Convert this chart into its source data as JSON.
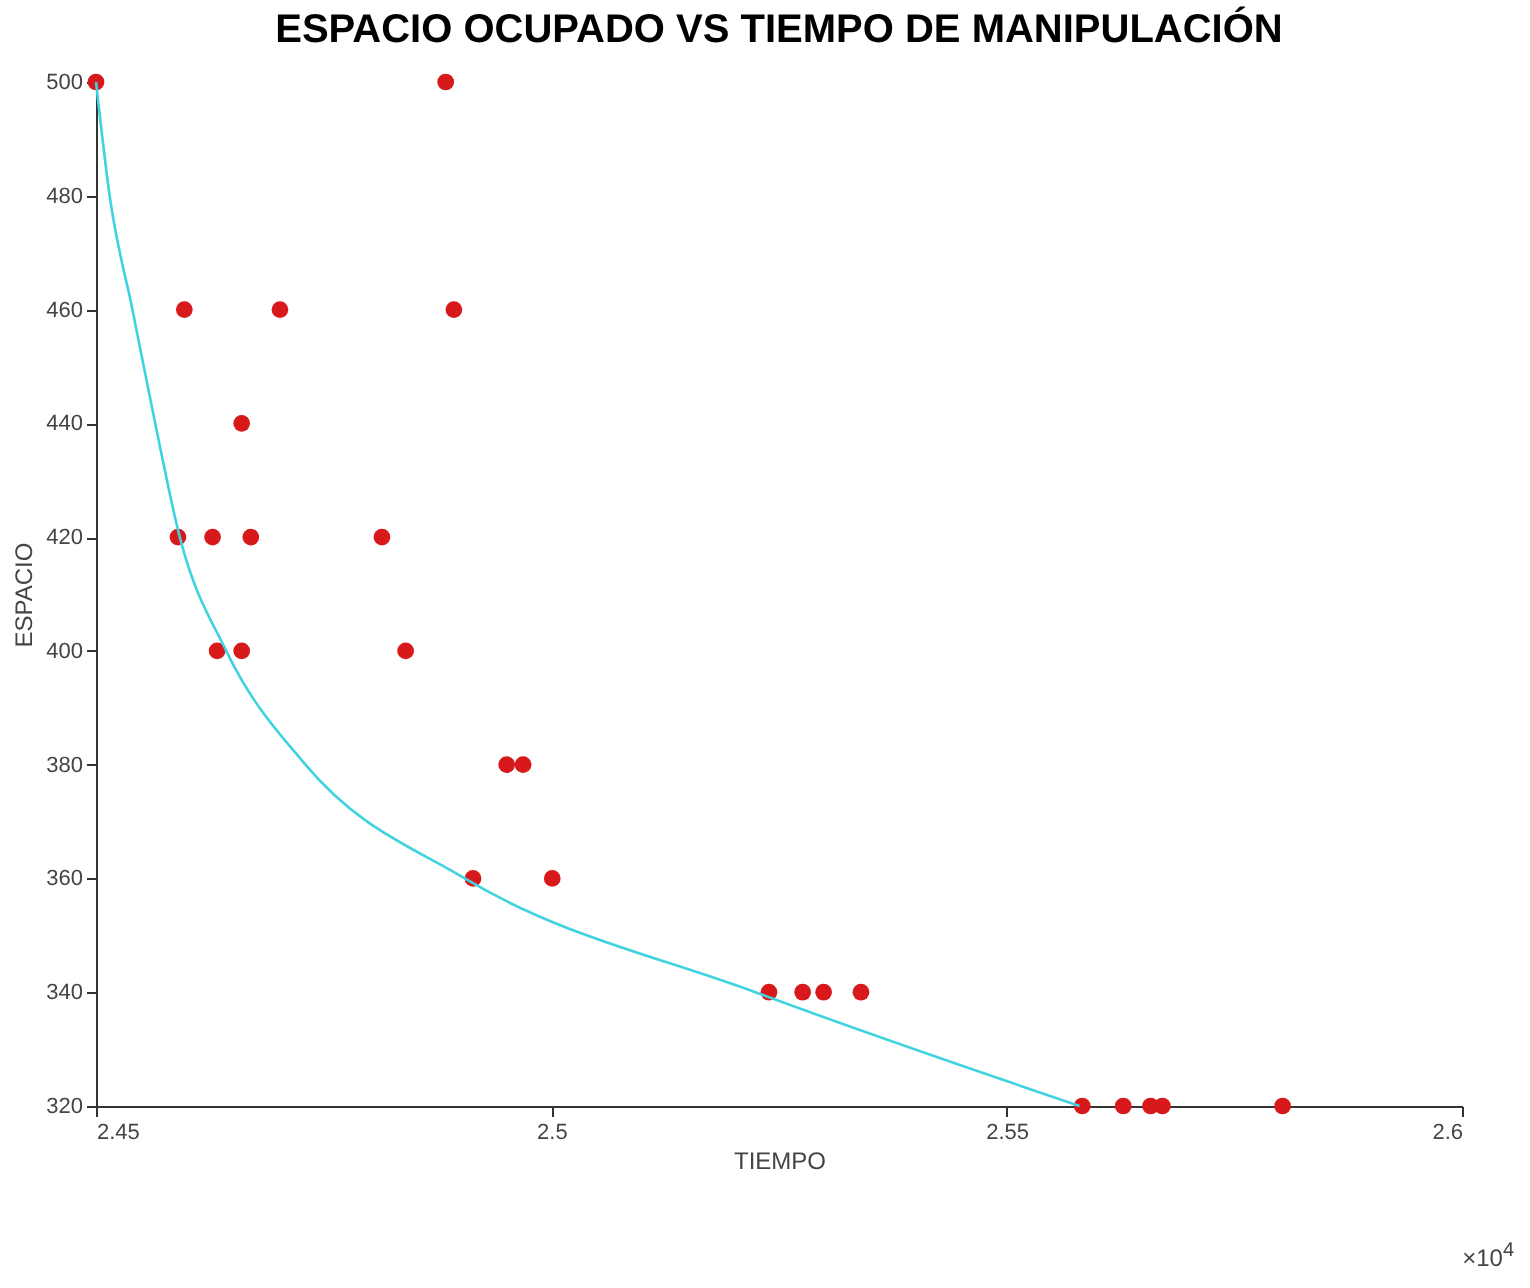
{
  "chart_data": {
    "type": "scatter",
    "title": "ESPACIO OCUPADO VS TIEMPO DE MANIPULACIÓN",
    "xlabel": "TIEMPO",
    "ylabel": "ESPACIO",
    "annotations": [
      "×10$^{4}$"
    ],
    "xlim": [
      2.45,
      2.6
    ],
    "xticks": [
      2.45,
      2.5,
      2.55,
      2.6
    ],
    "ylim": [
      320,
      500
    ],
    "yticks": [
      320,
      340,
      360,
      380,
      400,
      420,
      440,
      460,
      480,
      500
    ],
    "marker": "circle",
    "series": [
      {
        "color": "#d7191c",
        "x": [
          2.45,
          2.4884,
          2.4597,
          2.4702,
          2.4893,
          2.466,
          2.459,
          2.4628,
          2.467,
          2.4814,
          2.4633,
          2.466,
          2.484,
          2.4951,
          2.4969,
          2.4914,
          2.5001,
          2.5239,
          2.5276,
          2.5299,
          2.534,
          2.5583,
          2.5628,
          2.5658,
          2.5671,
          2.5803
        ],
        "values": [
          500,
          500,
          460,
          460,
          460,
          440,
          420,
          420,
          420,
          420,
          400,
          400,
          400,
          380,
          380,
          360,
          360,
          340,
          340,
          340,
          340,
          320,
          320,
          320,
          320,
          320
        ]
      },
      {
        "type": "line",
        "color": "#3fd3df",
        "marker": "none",
        "x": [
          2.45,
          2.4515,
          2.454,
          2.4565,
          2.4592,
          2.4643,
          2.473,
          2.4905,
          2.5224,
          2.558
        ],
        "values": [
          500,
          480,
          460,
          440,
          420,
          400,
          380,
          360,
          340,
          320
        ]
      }
    ]
  }
}
